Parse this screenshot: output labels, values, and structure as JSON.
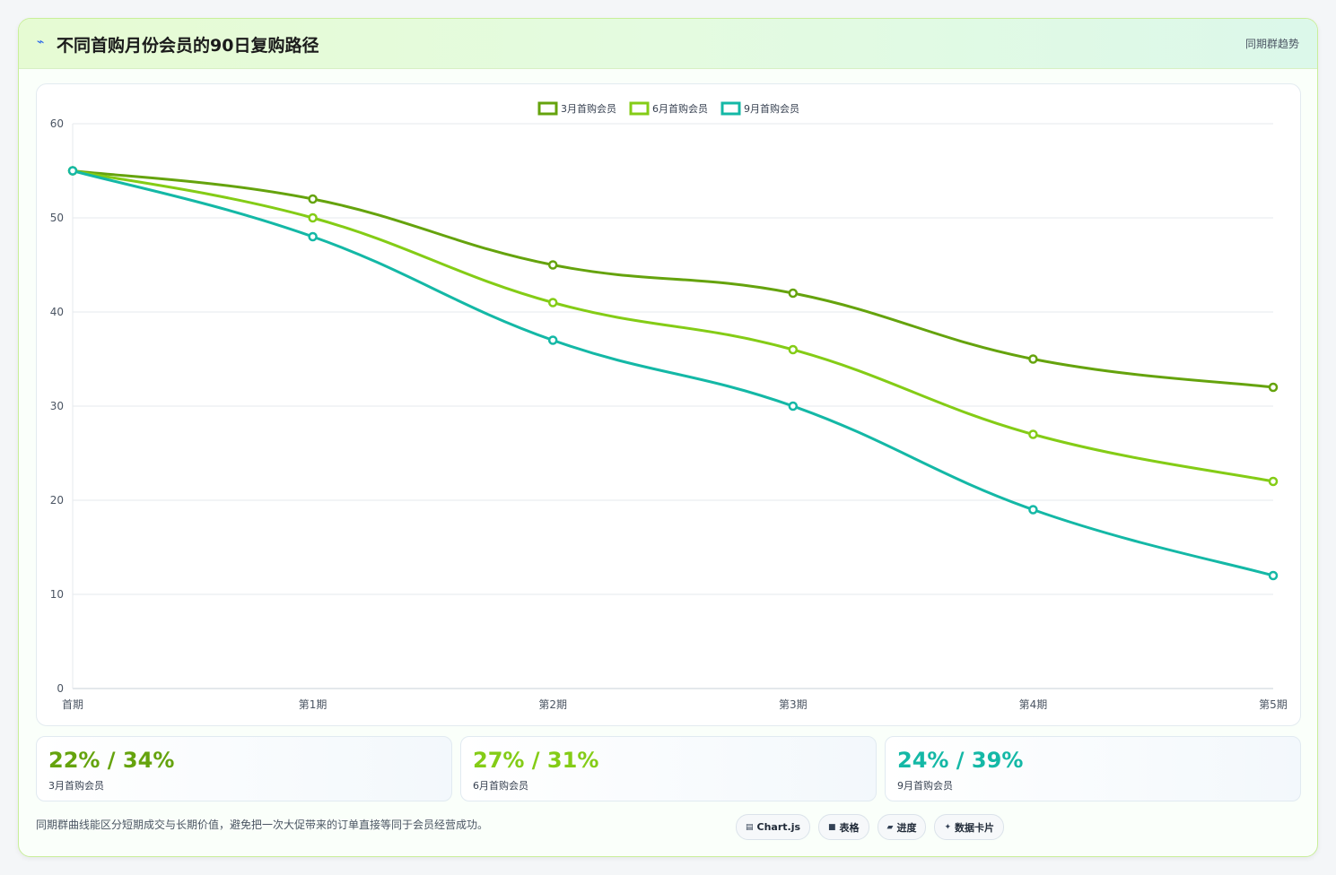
{
  "header": {
    "title": "不同首购月份会员的90日复购路径",
    "tag": "同期群趋势",
    "icon": "trend-line-icon"
  },
  "chart_data": {
    "type": "line",
    "title": "",
    "xlabel": "",
    "ylabel": "",
    "categories": [
      "首期",
      "第1期",
      "第2期",
      "第3期",
      "第4期",
      "第5期"
    ],
    "ylim": [
      0,
      60
    ],
    "yticks": [
      0,
      10,
      20,
      30,
      40,
      50,
      60
    ],
    "grid": true,
    "legend_position": "top",
    "series": [
      {
        "name": "3月首购会员",
        "color": "#65a30d",
        "values": [
          55,
          52,
          45,
          42,
          35,
          32
        ]
      },
      {
        "name": "6月首购会员",
        "color": "#84cc16",
        "values": [
          55,
          50,
          41,
          36,
          27,
          22
        ]
      },
      {
        "name": "9月首购会员",
        "color": "#14b8a6",
        "values": [
          55,
          48,
          37,
          30,
          19,
          12
        ]
      }
    ]
  },
  "stats": [
    {
      "value": "22% / 34%",
      "label": "3月首购会员",
      "color": "#65a30d"
    },
    {
      "value": "27% / 31%",
      "label": "6月首购会员",
      "color": "#84cc16"
    },
    {
      "value": "24% / 39%",
      "label": "9月首购会员",
      "color": "#14b8a6"
    }
  ],
  "footnote": "同期群曲线能区分短期成交与长期价值，避免把一次大促带来的订单直接等同于会员经营成功。",
  "chips": [
    {
      "icon": "chart-icon",
      "label": "Chart.js"
    },
    {
      "icon": "table-icon",
      "label": "表格"
    },
    {
      "icon": "progress-icon",
      "label": "进度"
    },
    {
      "icon": "sparkle-icon",
      "label": "数据卡片"
    }
  ]
}
